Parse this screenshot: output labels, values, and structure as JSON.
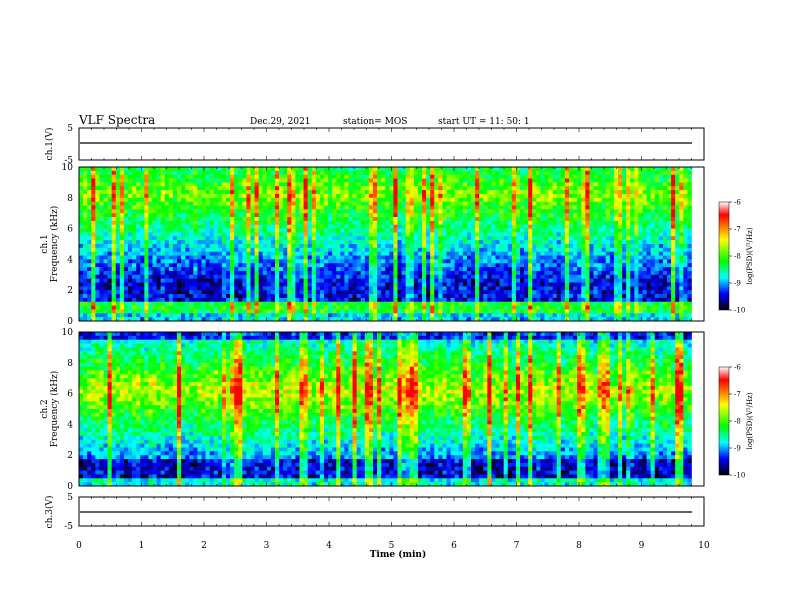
{
  "header": {
    "title": "VLF Spectra",
    "date": "Dec.29, 2021",
    "station": "station= MOS",
    "start": "start  UT =   11: 50: 1"
  },
  "panels": {
    "ch1_volt_label": "ch.1(V)",
    "ch1_spec_label_1": "ch.1",
    "ch1_spec_label_2": "Frequency (kHz)",
    "ch2_spec_label_1": "ch.2",
    "ch2_spec_label_2": "Frequency (kHz)",
    "ch3_volt_label": "ch.3(V)"
  },
  "colorbar": {
    "label": "log(PSD)(V²/Hz)",
    "ticks": [
      "-6",
      "-7",
      "-8",
      "-9",
      "-10"
    ],
    "colors": [
      "#ffffff",
      "#ff0000",
      "#ffff00",
      "#00ff00",
      "#00ffff",
      "#0000ff",
      "#000000"
    ]
  },
  "chart_data": [
    {
      "type": "line",
      "name": "ch.1 voltage",
      "ylabel": "ch.1(V)",
      "ylim": [
        -5,
        5
      ],
      "yticks": [
        "5",
        "-5"
      ],
      "xlim": [
        0,
        10
      ],
      "approx_level": 0
    },
    {
      "type": "heatmap",
      "name": "ch.1 spectrogram",
      "ylabel": "Frequency (kHz)",
      "ylim": [
        0,
        10
      ],
      "yticks": [
        "10",
        "8",
        "6",
        "4",
        "2",
        "0"
      ],
      "xlim": [
        0,
        10
      ],
      "xdata_max": 9.8,
      "zlim": [
        -10,
        -6
      ],
      "zlabel": "log(PSD)(V²/Hz)"
    },
    {
      "type": "heatmap",
      "name": "ch.2 spectrogram",
      "ylabel": "Frequency (kHz)",
      "ylim": [
        0,
        10
      ],
      "yticks": [
        "10",
        "8",
        "6",
        "4",
        "2",
        "0"
      ],
      "xlim": [
        0,
        10
      ],
      "xdata_max": 9.8,
      "zlim": [
        -10,
        -6
      ],
      "zlabel": "log(PSD)(V²/Hz)"
    },
    {
      "type": "line",
      "name": "ch.3 voltage",
      "ylabel": "ch.3(V)",
      "ylim": [
        -5,
        5
      ],
      "yticks": [
        "5",
        "-5"
      ],
      "xlim": [
        0,
        10
      ],
      "approx_level": 0
    }
  ],
  "xaxis": {
    "label": "Time  (min)",
    "ticks": [
      "0",
      "1",
      "2",
      "3",
      "4",
      "5",
      "6",
      "7",
      "8",
      "9",
      "10"
    ]
  }
}
